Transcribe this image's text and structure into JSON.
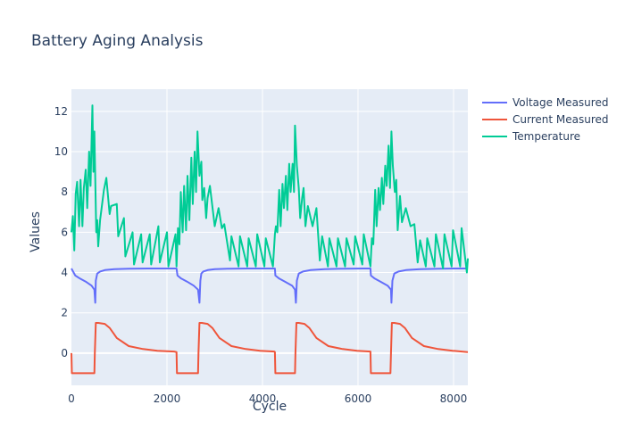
{
  "chart_data": {
    "type": "line",
    "title": "Battery Aging Analysis",
    "xlabel": "Cycle",
    "ylabel": "Values",
    "xlim": [
      0,
      8300
    ],
    "ylim": [
      -1.6,
      13.1
    ],
    "x_ticks": [
      0,
      2000,
      4000,
      6000,
      8000
    ],
    "y_ticks": [
      0,
      2,
      4,
      6,
      8,
      10,
      12
    ],
    "grid": true,
    "legend_position": "top-right",
    "series": [
      {
        "name": "Voltage Measured",
        "color": "#636efa",
        "x": [
          0,
          80,
          180,
          300,
          420,
          480,
          500,
          510,
          540,
          600,
          700,
          900,
          1200,
          1600,
          2000,
          2200,
          2220,
          2300,
          2420,
          2560,
          2650,
          2680,
          2700,
          2720,
          2760,
          2850,
          3000,
          3300,
          3700,
          4100,
          4260,
          4270,
          4350,
          4470,
          4620,
          4680,
          4700,
          4720,
          4760,
          4850,
          5000,
          5300,
          5700,
          6100,
          6260,
          6270,
          6350,
          6470,
          6620,
          6690,
          6700,
          6720,
          6760,
          6850,
          7000,
          7300,
          7700,
          8100,
          8300
        ],
        "y": [
          4.2,
          3.85,
          3.7,
          3.55,
          3.35,
          3.15,
          2.5,
          3.6,
          3.95,
          4.05,
          4.12,
          4.17,
          4.19,
          4.2,
          4.2,
          4.2,
          3.85,
          3.7,
          3.55,
          3.35,
          3.15,
          2.5,
          3.6,
          3.95,
          4.05,
          4.12,
          4.17,
          4.19,
          4.2,
          4.2,
          4.2,
          3.85,
          3.7,
          3.55,
          3.35,
          3.15,
          2.5,
          3.6,
          3.95,
          4.05,
          4.12,
          4.17,
          4.19,
          4.2,
          4.2,
          3.85,
          3.7,
          3.55,
          3.35,
          3.15,
          2.5,
          3.6,
          3.95,
          4.05,
          4.12,
          4.17,
          4.19,
          4.2,
          4.2
        ]
      },
      {
        "name": "Current Measured",
        "color": "#ef553b",
        "x": [
          0,
          10,
          480,
          490,
          510,
          560,
          700,
          800,
          950,
          1200,
          1500,
          1800,
          2150,
          2200,
          2210,
          2650,
          2660,
          2680,
          2730,
          2850,
          2950,
          3100,
          3350,
          3650,
          3950,
          4250,
          4260,
          4270,
          4680,
          4690,
          4710,
          4760,
          4880,
          4980,
          5130,
          5380,
          5680,
          5980,
          6260,
          6270,
          6680,
          6690,
          6710,
          6760,
          6880,
          6980,
          7130,
          7380,
          7680,
          7980,
          8300
        ],
        "y": [
          0,
          -1,
          -1,
          0,
          1.5,
          1.5,
          1.45,
          1.25,
          0.75,
          0.35,
          0.2,
          0.12,
          0.08,
          0.05,
          -1,
          -1,
          0,
          1.5,
          1.5,
          1.45,
          1.25,
          0.75,
          0.35,
          0.2,
          0.12,
          0.08,
          0.05,
          -1,
          -1,
          0,
          1.5,
          1.5,
          1.45,
          1.25,
          0.75,
          0.35,
          0.2,
          0.12,
          0.08,
          -1,
          -1,
          0,
          1.5,
          1.5,
          1.45,
          1.25,
          0.75,
          0.35,
          0.2,
          0.12,
          0.05
        ]
      },
      {
        "name": "Temperature",
        "color": "#00cc96",
        "x": [
          0,
          30,
          60,
          90,
          120,
          160,
          190,
          230,
          260,
          300,
          330,
          370,
          400,
          440,
          460,
          480,
          520,
          540,
          560,
          600,
          680,
          730,
          800,
          830,
          950,
          980,
          1100,
          1130,
          1280,
          1310,
          1460,
          1490,
          1640,
          1670,
          1820,
          1850,
          2000,
          2030,
          2180,
          2200,
          2230,
          2260,
          2290,
          2330,
          2360,
          2400,
          2430,
          2470,
          2510,
          2540,
          2580,
          2610,
          2640,
          2680,
          2720,
          2740,
          2780,
          2820,
          2850,
          2900,
          3000,
          3080,
          3150,
          3200,
          3320,
          3350,
          3500,
          3530,
          3680,
          3710,
          3860,
          3890,
          4040,
          4070,
          4220,
          4260,
          4280,
          4310,
          4350,
          4380,
          4420,
          4450,
          4490,
          4520,
          4560,
          4590,
          4630,
          4660,
          4680,
          4720,
          4760,
          4790,
          4830,
          4860,
          4900,
          4950,
          5050,
          5130,
          5200,
          5250,
          5370,
          5400,
          5550,
          5580,
          5730,
          5760,
          5910,
          5940,
          6090,
          6120,
          6260,
          6290,
          6320,
          6360,
          6390,
          6430,
          6460,
          6500,
          6530,
          6570,
          6600,
          6640,
          6670,
          6700,
          6730,
          6770,
          6800,
          6830,
          6880,
          6920,
          7000,
          7100,
          7180,
          7250,
          7300,
          7420,
          7450,
          7600,
          7630,
          7780,
          7810,
          7960,
          7990,
          8140,
          8170,
          8280,
          8300
        ],
        "y": [
          6.0,
          6.8,
          5.1,
          7.9,
          8.5,
          6.3,
          8.6,
          6.3,
          8.2,
          9.1,
          7.2,
          10.0,
          8.3,
          12.3,
          9.0,
          11.0,
          6.0,
          6.6,
          5.3,
          6.6,
          8.1,
          8.7,
          6.9,
          7.3,
          7.4,
          5.8,
          6.7,
          4.8,
          6.0,
          4.4,
          5.9,
          4.5,
          5.9,
          4.4,
          6.3,
          4.5,
          6.0,
          4.3,
          5.9,
          4.3,
          6.2,
          5.4,
          8.0,
          6.0,
          8.3,
          6.1,
          8.8,
          6.6,
          9.7,
          7.4,
          10.0,
          8.0,
          11.0,
          8.8,
          9.5,
          7.6,
          8.2,
          6.7,
          7.7,
          8.3,
          6.3,
          7.2,
          6.2,
          6.4,
          4.6,
          5.8,
          4.3,
          5.8,
          4.3,
          5.7,
          4.3,
          5.9,
          4.3,
          5.7,
          4.3,
          5.9,
          6.3,
          6.0,
          8.1,
          6.3,
          8.4,
          7.2,
          8.8,
          7.1,
          9.4,
          8.0,
          9.4,
          8.0,
          11.3,
          9.3,
          8.2,
          6.7,
          7.7,
          8.2,
          6.3,
          7.3,
          6.3,
          7.2,
          4.6,
          5.8,
          4.3,
          5.7,
          4.3,
          5.7,
          4.3,
          5.7,
          4.4,
          5.8,
          4.4,
          5.9,
          4.3,
          5.7,
          5.4,
          8.1,
          6.3,
          8.2,
          7.1,
          8.7,
          7.4,
          9.3,
          8.3,
          10.3,
          8.2,
          11.0,
          9.3,
          8.0,
          8.6,
          6.1,
          7.8,
          6.5,
          7.2,
          6.3,
          6.4,
          4.5,
          5.6,
          4.3,
          5.7,
          4.3,
          5.9,
          4.2,
          5.9,
          4.3,
          6.1,
          4.3,
          6.2,
          4.0,
          4.7
        ]
      }
    ]
  }
}
